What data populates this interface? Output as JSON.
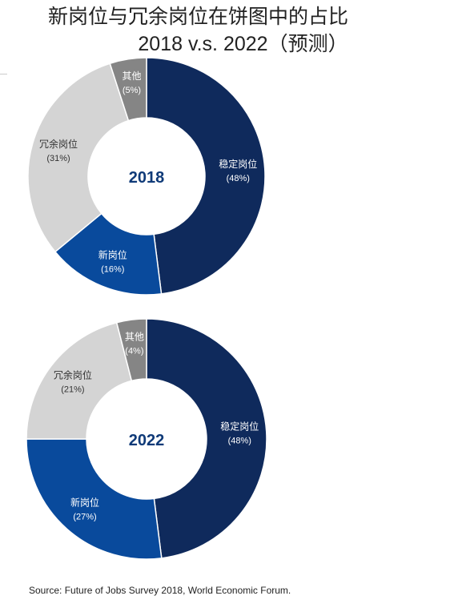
{
  "title": {
    "line1": "新岗位与冗余岗位在饼图中的占比",
    "line2": "2018 v.s. 2022（预测）"
  },
  "source": "Source: Future of Jobs Survey 2018, World Economic Forum.",
  "colors": {
    "stable": "#0f2a5c",
    "new": "#094a9c",
    "redundant": "#d4d4d4",
    "other": "#858585",
    "center_label": "#0f3a78"
  },
  "chart_data": [
    {
      "type": "pie",
      "title": "2018",
      "slices": [
        {
          "label": "稳定岗位",
          "value": 48,
          "value_label": "(48%)",
          "color": "#0f2a5c"
        },
        {
          "label": "新岗位",
          "value": 16,
          "value_label": "(16%)",
          "color": "#094a9c"
        },
        {
          "label": "冗余岗位",
          "value": 31,
          "value_label": "(31%)",
          "color": "#d4d4d4"
        },
        {
          "label": "其他",
          "value": 5,
          "value_label": "(5%)",
          "color": "#858585"
        }
      ]
    },
    {
      "type": "pie",
      "title": "2022",
      "slices": [
        {
          "label": "稳定岗位",
          "value": 48,
          "value_label": "(48%)",
          "color": "#0f2a5c"
        },
        {
          "label": "新岗位",
          "value": 27,
          "value_label": "(27%)",
          "color": "#094a9c"
        },
        {
          "label": "冗余岗位",
          "value": 21,
          "value_label": "(21%)",
          "color": "#d4d4d4"
        },
        {
          "label": "其他",
          "value": 4,
          "value_label": "(4%)",
          "color": "#858585"
        }
      ]
    }
  ]
}
